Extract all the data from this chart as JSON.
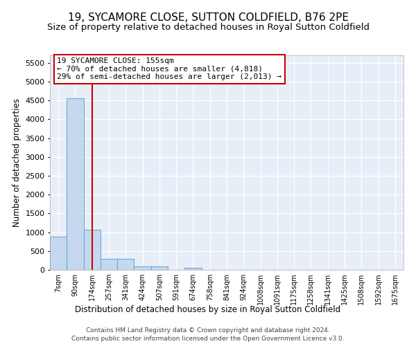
{
  "title1": "19, SYCAMORE CLOSE, SUTTON COLDFIELD, B76 2PE",
  "title2": "Size of property relative to detached houses in Royal Sutton Coldfield",
  "xlabel": "Distribution of detached houses by size in Royal Sutton Coldfield",
  "ylabel": "Number of detached properties",
  "footer1": "Contains HM Land Registry data © Crown copyright and database right 2024.",
  "footer2": "Contains public sector information licensed under the Open Government Licence v3.0.",
  "annotation_title": "19 SYCAMORE CLOSE: 155sqm",
  "annotation_line1": "← 70% of detached houses are smaller (4,818)",
  "annotation_line2": "29% of semi-detached houses are larger (2,013) →",
  "bar_color": "#c5d8ef",
  "bar_edge_color": "#6aaad4",
  "vline_color": "#cc0000",
  "categories": [
    "7sqm",
    "90sqm",
    "174sqm",
    "257sqm",
    "341sqm",
    "424sqm",
    "507sqm",
    "591sqm",
    "674sqm",
    "758sqm",
    "841sqm",
    "924sqm",
    "1008sqm",
    "1091sqm",
    "1175sqm",
    "1258sqm",
    "1341sqm",
    "1425sqm",
    "1508sqm",
    "1592sqm",
    "1675sqm"
  ],
  "values": [
    880,
    4560,
    1060,
    290,
    290,
    90,
    90,
    0,
    60,
    0,
    0,
    0,
    0,
    0,
    0,
    0,
    0,
    0,
    0,
    0,
    0
  ],
  "ylim": [
    0,
    5700
  ],
  "yticks": [
    0,
    500,
    1000,
    1500,
    2000,
    2500,
    3000,
    3500,
    4000,
    4500,
    5000,
    5500
  ],
  "vline_x_index": 2.0,
  "bg_color": "#e8eef8",
  "grid_color": "#ffffff",
  "title1_fontsize": 11,
  "title2_fontsize": 9.5
}
